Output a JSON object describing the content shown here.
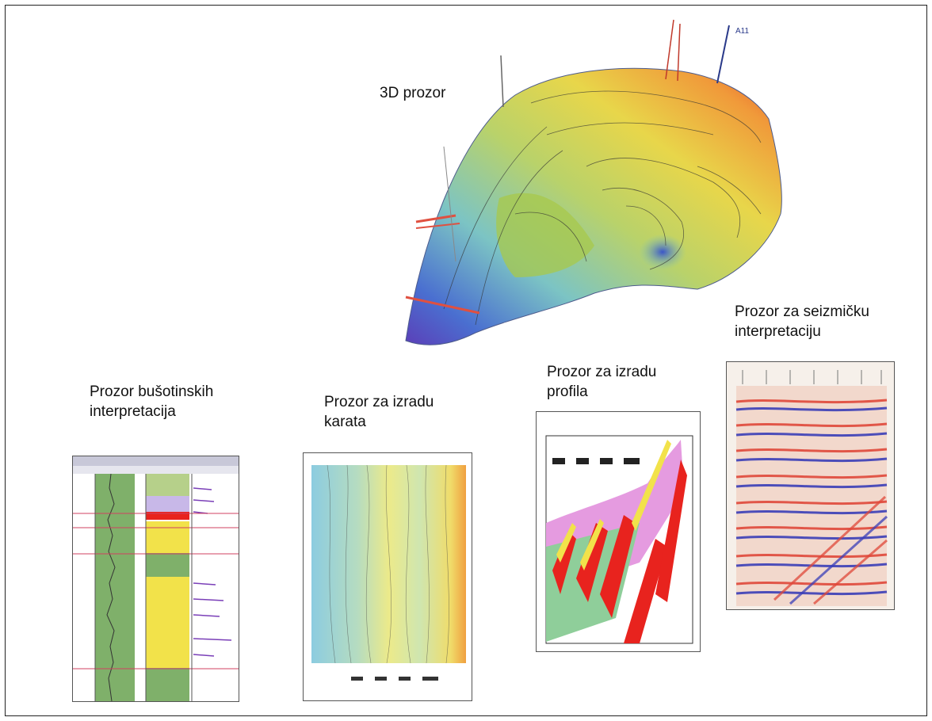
{
  "labels": {
    "view3d": "3D prozor",
    "well": "Prozor bušotinskih\ninterpretacija",
    "maps": "Prozor za izradu\nkarata",
    "profiles": "Prozor za izradu\n profila",
    "seismic": "Prozor za seizmičku\n interpretaciju"
  },
  "well_tags": [
    "A11"
  ],
  "colors": {
    "frame": "#222222",
    "surface_high": "#e8602a",
    "surface_mid": "#dfd85a",
    "surface_low": "#4a6fd0",
    "profile_pink": "#e59be0",
    "profile_red": "#e8231e",
    "profile_yellow": "#f2e24a",
    "profile_green": "#8fce9a",
    "seismic_red": "#e0483a",
    "seismic_blue": "#3b3fb8"
  }
}
